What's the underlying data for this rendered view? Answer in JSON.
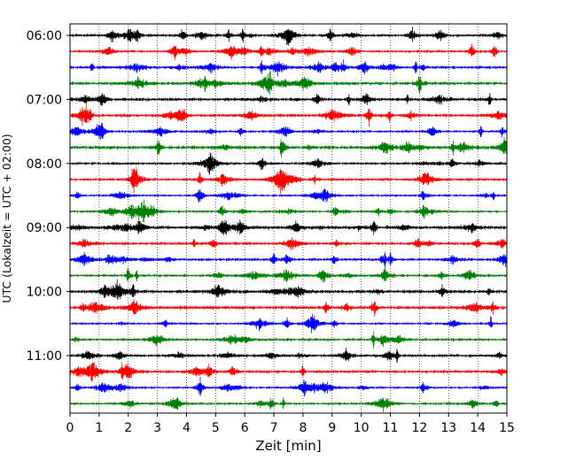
{
  "chart_data": {
    "type": "line",
    "title": "",
    "xlabel": "Zeit  [min]",
    "ylabel": "UTC (Lokalzeit = UTC + 02:00)",
    "xlim": [
      0,
      15
    ],
    "x_ticks": [
      0,
      1,
      2,
      3,
      4,
      5,
      6,
      7,
      8,
      9,
      10,
      11,
      12,
      13,
      14,
      15
    ],
    "x_gridlines": "dotted",
    "y_tick_labels": [
      "06:00",
      "07:00",
      "08:00",
      "09:00",
      "10:00",
      "11:00"
    ],
    "trace_start": "06:00",
    "trace_interval_min": 15,
    "trace_count": 24,
    "series_colors": [
      "#000000",
      "#ff0000",
      "#0000ff",
      "#008000"
    ],
    "legend": "none"
  }
}
